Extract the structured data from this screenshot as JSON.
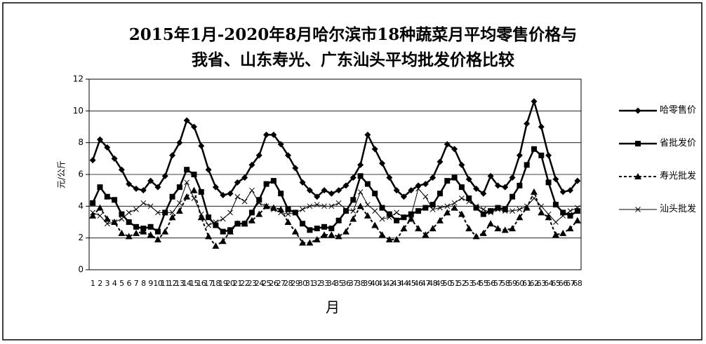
{
  "chart_data": {
    "type": "line",
    "title": [
      "2015年1月-2020年8月哈尔滨市18种蔬菜月平均零售价格与",
      "我省、山东寿光、广东汕头平均批发价格比较"
    ],
    "x_label": "月",
    "y_label": "元/公斤",
    "categories": [
      "1",
      "2",
      "3",
      "4",
      "5",
      "6",
      "7",
      "8",
      "9",
      "10",
      "11",
      "12",
      "13",
      "14",
      "15",
      "16",
      "17",
      "18",
      "19",
      "20",
      "21",
      "22",
      "23",
      "24",
      "25",
      "26",
      "27",
      "28",
      "29",
      "30",
      "31",
      "32",
      "33",
      "34",
      "35",
      "36",
      "37",
      "38",
      "39",
      "40",
      "41",
      "42",
      "43",
      "44",
      "45",
      "46",
      "47",
      "48",
      "49",
      "50",
      "51",
      "52",
      "53",
      "54",
      "55",
      "56",
      "57",
      "58",
      "59",
      "60",
      "61",
      "62",
      "63",
      "64",
      "65",
      "66",
      "67",
      "68"
    ],
    "ylim": [
      0,
      12
    ],
    "yticks": [
      0,
      2,
      4,
      6,
      8,
      10,
      12
    ],
    "grid": true,
    "series": [
      {
        "name": "哈零售价",
        "color": "#000000",
        "marker": "diamond",
        "dash": "solid",
        "width": 2.5,
        "values": [
          6.9,
          8.2,
          7.7,
          7.0,
          6.3,
          5.4,
          5.1,
          5.0,
          5.6,
          5.2,
          5.9,
          7.2,
          8.0,
          9.4,
          9.0,
          7.8,
          6.3,
          5.2,
          4.7,
          4.8,
          5.5,
          5.8,
          6.6,
          7.2,
          8.5,
          8.5,
          7.9,
          7.2,
          6.4,
          5.5,
          5.0,
          4.6,
          5.0,
          4.8,
          5.0,
          5.3,
          5.8,
          6.6,
          8.5,
          7.6,
          6.7,
          5.8,
          5.0,
          4.6,
          5.0,
          5.3,
          5.4,
          5.8,
          6.8,
          7.9,
          7.6,
          6.6,
          5.7,
          5.1,
          4.8,
          5.9,
          5.3,
          5.2,
          5.8,
          7.2,
          9.2,
          10.6,
          9.0,
          7.2,
          5.7,
          4.9,
          5.0,
          5.6
        ]
      },
      {
        "name": "省批发价",
        "color": "#000000",
        "marker": "square",
        "dash": "solid",
        "width": 2.5,
        "values": [
          4.2,
          5.2,
          4.6,
          4.4,
          3.5,
          3.0,
          2.7,
          2.6,
          2.7,
          2.4,
          3.6,
          4.6,
          5.2,
          6.3,
          6.0,
          4.9,
          3.3,
          2.8,
          2.4,
          2.5,
          2.9,
          2.9,
          3.6,
          4.4,
          5.4,
          5.6,
          4.8,
          3.8,
          3.6,
          2.9,
          2.5,
          2.6,
          2.7,
          2.6,
          3.1,
          3.7,
          4.4,
          5.9,
          5.4,
          4.8,
          3.9,
          3.5,
          3.1,
          3.3,
          3.5,
          3.7,
          3.9,
          4.1,
          4.8,
          5.6,
          5.8,
          5.2,
          4.5,
          3.9,
          3.5,
          3.7,
          3.9,
          3.8,
          4.6,
          5.3,
          6.6,
          7.6,
          7.2,
          5.5,
          4.1,
          3.6,
          3.4,
          3.7
        ]
      },
      {
        "name": "寿光批发",
        "color": "#000000",
        "marker": "triangle",
        "dash": "dashed",
        "width": 2,
        "values": [
          3.4,
          3.9,
          3.2,
          3.0,
          2.3,
          2.1,
          2.3,
          2.4,
          2.2,
          1.9,
          2.4,
          3.3,
          3.7,
          4.6,
          5.0,
          3.3,
          2.1,
          1.5,
          1.8,
          2.4,
          2.9,
          2.9,
          3.1,
          3.5,
          4.0,
          3.9,
          3.8,
          3.0,
          2.4,
          1.7,
          1.7,
          1.9,
          2.2,
          2.2,
          2.1,
          2.4,
          3.2,
          4.0,
          3.4,
          2.8,
          2.2,
          1.9,
          1.9,
          2.6,
          3.2,
          2.6,
          2.2,
          2.6,
          3.1,
          3.6,
          3.9,
          3.5,
          2.6,
          2.1,
          2.3,
          2.9,
          2.6,
          2.5,
          2.6,
          3.3,
          3.9,
          4.9,
          3.6,
          3.3,
          2.2,
          2.3,
          2.6,
          3.1
        ]
      },
      {
        "name": "汕头批发",
        "color": "#000000",
        "marker": "x",
        "dash": "solid",
        "width": 1,
        "values": [
          3.6,
          3.4,
          2.9,
          3.0,
          3.2,
          3.6,
          3.8,
          4.2,
          4.0,
          3.6,
          3.6,
          3.6,
          4.2,
          5.5,
          4.5,
          3.5,
          2.8,
          3.0,
          3.2,
          3.6,
          4.6,
          4.3,
          5.0,
          4.2,
          4.0,
          3.8,
          3.6,
          3.5,
          3.6,
          3.8,
          4.0,
          4.1,
          4.0,
          4.0,
          4.2,
          3.8,
          3.7,
          4.9,
          4.1,
          3.7,
          3.2,
          3.3,
          3.6,
          3.3,
          3.4,
          5.1,
          4.6,
          3.8,
          3.9,
          4.0,
          4.2,
          4.5,
          4.3,
          4.0,
          3.8,
          3.6,
          3.8,
          3.7,
          3.7,
          3.8,
          4.0,
          4.5,
          4.0,
          3.5,
          3.0,
          3.4,
          3.7,
          3.9
        ]
      }
    ]
  }
}
